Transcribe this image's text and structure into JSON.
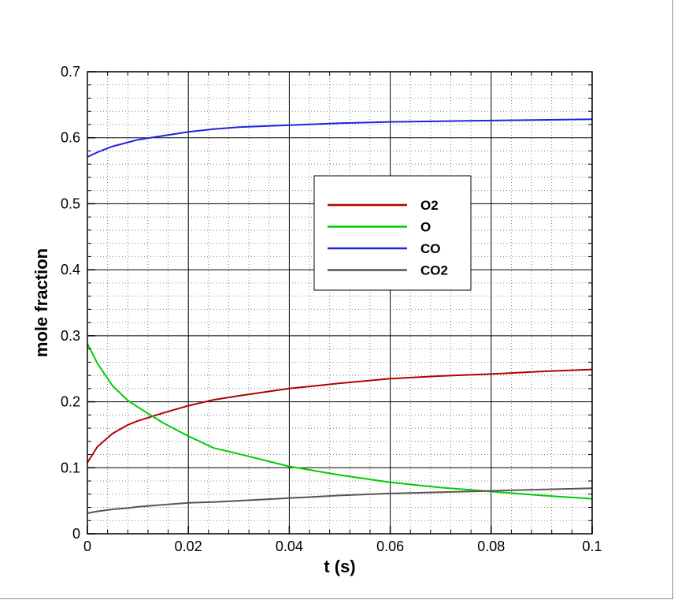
{
  "chart_data": {
    "type": "line",
    "xlabel": "t (s)",
    "ylabel": "mole fraction",
    "xlim": [
      0,
      0.1
    ],
    "ylim": [
      0,
      0.7
    ],
    "x_ticks": [
      "0",
      "0.02",
      "0.04",
      "0.06",
      "0.08",
      "0.1"
    ],
    "y_ticks": [
      "0",
      "0.1",
      "0.2",
      "0.3",
      "0.4",
      "0.5",
      "0.6",
      "0.7"
    ],
    "grid": "major and minor",
    "legend_position": "upper-center",
    "series": [
      {
        "name": "O2",
        "color": "#b30000",
        "x": [
          0,
          0.002,
          0.005,
          0.008,
          0.01,
          0.015,
          0.02,
          0.025,
          0.03,
          0.04,
          0.05,
          0.06,
          0.07,
          0.08,
          0.09,
          0.1
        ],
        "y": [
          0.108,
          0.132,
          0.152,
          0.165,
          0.171,
          0.183,
          0.194,
          0.203,
          0.209,
          0.22,
          0.228,
          0.235,
          0.239,
          0.242,
          0.246,
          0.249
        ]
      },
      {
        "name": "O",
        "color": "#00cc00",
        "x": [
          0,
          0.002,
          0.005,
          0.008,
          0.01,
          0.015,
          0.02,
          0.025,
          0.03,
          0.04,
          0.05,
          0.06,
          0.07,
          0.08,
          0.09,
          0.1
        ],
        "y": [
          0.288,
          0.258,
          0.224,
          0.202,
          0.192,
          0.168,
          0.148,
          0.13,
          0.121,
          0.102,
          0.089,
          0.078,
          0.07,
          0.064,
          0.058,
          0.053
        ]
      },
      {
        "name": "CO",
        "color": "#2222dd",
        "x": [
          0,
          0.002,
          0.005,
          0.008,
          0.01,
          0.015,
          0.02,
          0.025,
          0.03,
          0.04,
          0.05,
          0.06,
          0.07,
          0.08,
          0.09,
          0.1
        ],
        "y": [
          0.571,
          0.578,
          0.587,
          0.593,
          0.597,
          0.603,
          0.609,
          0.613,
          0.616,
          0.619,
          0.622,
          0.624,
          0.625,
          0.626,
          0.627,
          0.628
        ]
      },
      {
        "name": "CO2",
        "color": "#555555",
        "x": [
          0,
          0.002,
          0.005,
          0.008,
          0.01,
          0.015,
          0.02,
          0.025,
          0.03,
          0.04,
          0.05,
          0.06,
          0.07,
          0.08,
          0.09,
          0.1
        ],
        "y": [
          0.031,
          0.034,
          0.037,
          0.039,
          0.041,
          0.044,
          0.047,
          0.048,
          0.05,
          0.054,
          0.058,
          0.061,
          0.063,
          0.065,
          0.067,
          0.069
        ]
      }
    ]
  }
}
